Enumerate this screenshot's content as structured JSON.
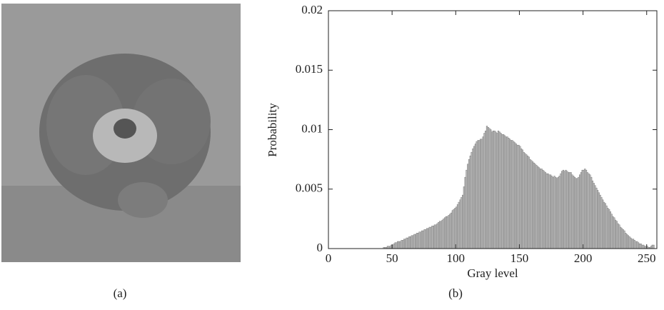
{
  "captions": [
    "(a)",
    "(b)"
  ],
  "chart_data": {
    "type": "bar",
    "xlabel": "Gray level",
    "ylabel": "Probability",
    "x": [
      40,
      41,
      42,
      43,
      44,
      45,
      46,
      47,
      48,
      49,
      50,
      51,
      52,
      53,
      54,
      55,
      56,
      57,
      58,
      59,
      60,
      61,
      62,
      63,
      64,
      65,
      66,
      67,
      68,
      69,
      70,
      71,
      72,
      73,
      74,
      75,
      76,
      77,
      78,
      79,
      80,
      81,
      82,
      83,
      84,
      85,
      86,
      87,
      88,
      89,
      90,
      91,
      92,
      93,
      94,
      95,
      96,
      97,
      98,
      99,
      100,
      101,
      102,
      103,
      104,
      105,
      106,
      107,
      108,
      109,
      110,
      111,
      112,
      113,
      114,
      115,
      116,
      117,
      118,
      119,
      120,
      121,
      122,
      123,
      124,
      125,
      126,
      127,
      128,
      129,
      130,
      131,
      132,
      133,
      134,
      135,
      136,
      137,
      138,
      139,
      140,
      141,
      142,
      143,
      144,
      145,
      146,
      147,
      148,
      149,
      150,
      151,
      152,
      153,
      154,
      155,
      156,
      157,
      158,
      159,
      160,
      161,
      162,
      163,
      164,
      165,
      166,
      167,
      168,
      169,
      170,
      171,
      172,
      173,
      174,
      175,
      176,
      177,
      178,
      179,
      180,
      181,
      182,
      183,
      184,
      185,
      186,
      187,
      188,
      189,
      190,
      191,
      192,
      193,
      194,
      195,
      196,
      197,
      198,
      199,
      200,
      201,
      202,
      203,
      204,
      205,
      206,
      207,
      208,
      209,
      210,
      211,
      212,
      213,
      214,
      215,
      216,
      217,
      218,
      219,
      220,
      221,
      222,
      223,
      224,
      225,
      226,
      227,
      228,
      229,
      230,
      231,
      232,
      233,
      234,
      235,
      236,
      237,
      238,
      239,
      240,
      241,
      242,
      243,
      244,
      245,
      246,
      247,
      248,
      249,
      250,
      251,
      252,
      253,
      254,
      255
    ],
    "values": [
      0,
      0,
      0,
      0.0001,
      0.0001,
      0.0001,
      0.0002,
      0.0002,
      0.0002,
      0.0003,
      0.0003,
      0.0004,
      0.0005,
      0.0005,
      0.0006,
      0.0006,
      0.0006,
      0.0007,
      0.0007,
      0.0008,
      0.0008,
      0.0009,
      0.0009,
      0.001,
      0.001,
      0.0011,
      0.0011,
      0.0012,
      0.0012,
      0.0013,
      0.0013,
      0.0014,
      0.0014,
      0.0015,
      0.0015,
      0.0016,
      0.0016,
      0.0017,
      0.0017,
      0.0018,
      0.0018,
      0.0019,
      0.0019,
      0.002,
      0.002,
      0.0021,
      0.0022,
      0.0023,
      0.0023,
      0.0024,
      0.0025,
      0.0026,
      0.0027,
      0.0027,
      0.0028,
      0.0029,
      0.003,
      0.0032,
      0.0033,
      0.0034,
      0.0035,
      0.0037,
      0.0039,
      0.0041,
      0.0043,
      0.0045,
      0.0052,
      0.006,
      0.0066,
      0.0071,
      0.0075,
      0.0078,
      0.0081,
      0.0084,
      0.0086,
      0.0088,
      0.009,
      0.0091,
      0.0091,
      0.0092,
      0.0092,
      0.0094,
      0.0097,
      0.0099,
      0.0103,
      0.0102,
      0.0101,
      0.01,
      0.0098,
      0.0099,
      0.0099,
      0.0098,
      0.0097,
      0.0099,
      0.0098,
      0.0097,
      0.0096,
      0.0096,
      0.0095,
      0.0094,
      0.0094,
      0.0093,
      0.0092,
      0.0091,
      0.0091,
      0.009,
      0.0089,
      0.0088,
      0.0087,
      0.0087,
      0.0086,
      0.0084,
      0.0083,
      0.0081,
      0.008,
      0.0079,
      0.0078,
      0.0077,
      0.0075,
      0.0074,
      0.0073,
      0.0072,
      0.0071,
      0.007,
      0.0069,
      0.0068,
      0.0067,
      0.0067,
      0.0066,
      0.0065,
      0.0064,
      0.0063,
      0.0063,
      0.0062,
      0.0062,
      0.0061,
      0.006,
      0.0061,
      0.006,
      0.0059,
      0.006,
      0.0061,
      0.0063,
      0.0065,
      0.0066,
      0.0065,
      0.0066,
      0.0065,
      0.0064,
      0.0064,
      0.0064,
      0.0062,
      0.0061,
      0.006,
      0.0059,
      0.0059,
      0.006,
      0.0062,
      0.0064,
      0.0066,
      0.0066,
      0.0067,
      0.0066,
      0.0064,
      0.0063,
      0.0062,
      0.006,
      0.0057,
      0.0055,
      0.0053,
      0.0051,
      0.0049,
      0.0047,
      0.0045,
      0.0043,
      0.0041,
      0.0039,
      0.0038,
      0.0036,
      0.0034,
      0.0033,
      0.0031,
      0.0029,
      0.0027,
      0.0026,
      0.0024,
      0.0023,
      0.0021,
      0.002,
      0.0018,
      0.0017,
      0.0016,
      0.0015,
      0.0013,
      0.0012,
      0.0011,
      0.001,
      0.0009,
      0.0008,
      0.0008,
      0.0007,
      0.0006,
      0.0006,
      0.0005,
      0.0004,
      0.0004,
      0.0003,
      0.0003,
      0.0002,
      0.0002,
      0.0002,
      0.0001,
      0.0001,
      0.0002,
      0.0003,
      0.0003
    ],
    "color": "#bdbdbd",
    "xlim": [
      0,
      258
    ],
    "xticks": [
      0,
      50,
      100,
      150,
      200,
      250
    ],
    "ylim": [
      0,
      0.02
    ],
    "yticks": [
      0,
      0.005,
      0.01,
      0.015,
      0.02
    ]
  }
}
